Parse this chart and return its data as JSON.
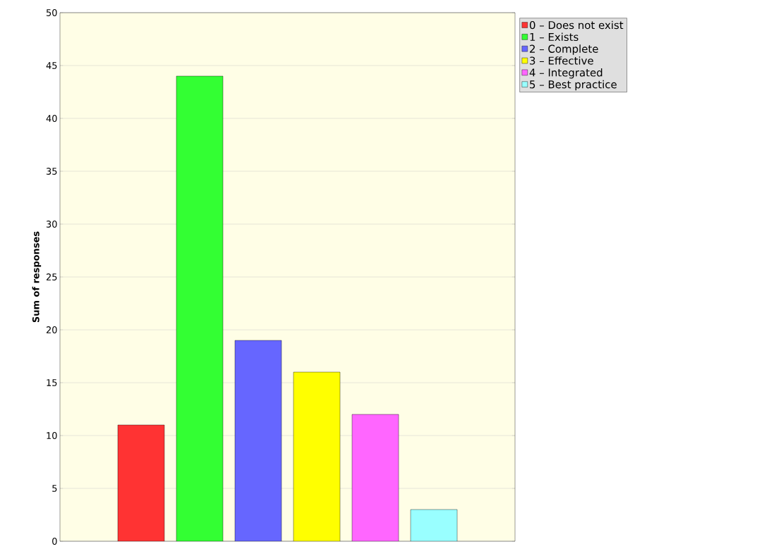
{
  "chart_data": {
    "type": "bar",
    "ylabel": "Sum of responses",
    "categories": [
      null
    ],
    "series": [
      {
        "name": "0 – Does not exist",
        "color": "#ff3333",
        "values": [
          11
        ]
      },
      {
        "name": "1 – Exists",
        "color": "#33ff33",
        "values": [
          44
        ]
      },
      {
        "name": "2 – Complete",
        "color": "#6666ff",
        "values": [
          19
        ]
      },
      {
        "name": "3 – Effective",
        "color": "#ffff00",
        "values": [
          16
        ]
      },
      {
        "name": "4 – Integrated",
        "color": "#ff66ff",
        "values": [
          12
        ]
      },
      {
        "name": "5 – Best practice",
        "color": "#99ffff",
        "values": [
          3
        ]
      }
    ],
    "ylim": [
      0,
      50
    ],
    "yticks": [
      0,
      5,
      10,
      15,
      20,
      25,
      30,
      35,
      40,
      45,
      50
    ],
    "grid": "y",
    "legend": "top right"
  }
}
